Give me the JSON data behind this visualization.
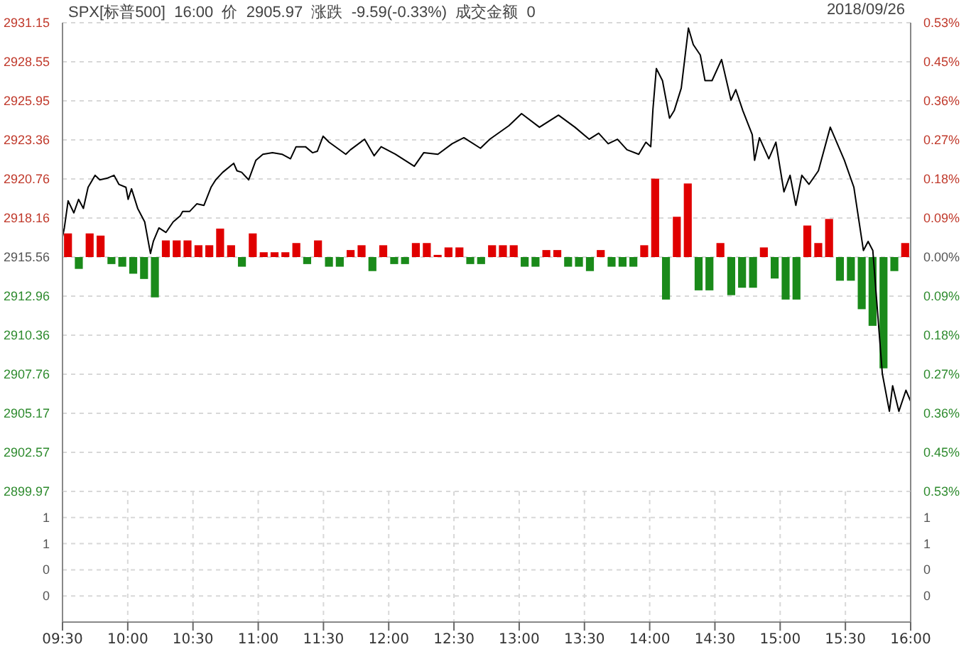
{
  "chart_data": [
    {
      "type": "line",
      "title": "SPX[标普500]  16:00  价  2905.97  涨跌  -9.59(-0.33%)  成交金额  0",
      "subtitle": "2018/09/26",
      "legend": false,
      "grid": true,
      "tick_labels": "y",
      "xlim": [
        9.5,
        16
      ],
      "xticks": [
        {
          "value": 9.5,
          "label": null
        },
        {
          "value": 10,
          "label": null
        },
        {
          "value": 10.5,
          "label": null
        },
        {
          "value": 11,
          "label": null
        },
        {
          "value": 11.5,
          "label": null
        },
        {
          "value": 12,
          "label": null
        },
        {
          "value": 12.5,
          "label": null
        },
        {
          "value": 13,
          "label": null
        },
        {
          "value": 13.5,
          "label": null
        },
        {
          "value": 14,
          "label": null
        },
        {
          "value": 14.5,
          "label": null
        },
        {
          "value": 15,
          "label": null
        },
        {
          "value": 15.5,
          "label": null
        },
        {
          "value": 16,
          "label": null
        }
      ],
      "ylim": [
        2899.97,
        2931.15
      ],
      "yticks": [
        2899.97,
        2902.57,
        2905.17,
        2907.76,
        2910.36,
        2912.96,
        2915.56,
        2918.16,
        2920.76,
        2923.36,
        2925.95,
        2928.55,
        2931.15
      ],
      "y2lim": [
        -0.535,
        0.535
      ],
      "y2ticks": [
        {
          "value": -0.535,
          "label": "0.53%"
        },
        {
          "value": -0.446,
          "label": "0.45%"
        },
        {
          "value": -0.356,
          "label": "0.36%"
        },
        {
          "value": -0.267,
          "label": "0.27%"
        },
        {
          "value": -0.178,
          "label": "0.18%"
        },
        {
          "value": -0.089,
          "label": "0.09%"
        },
        {
          "value": 0,
          "label": "0.00%"
        },
        {
          "value": 0.089,
          "label": "0.09%"
        },
        {
          "value": 0.178,
          "label": "0.18%"
        },
        {
          "value": 0.267,
          "label": "0.27%"
        },
        {
          "value": 0.356,
          "label": "0.36%"
        },
        {
          "value": 0.446,
          "label": "0.45%"
        },
        {
          "value": 0.535,
          "label": "0.53%"
        }
      ],
      "series": [
        {
          "color": "#000000",
          "x": [
            9.5,
            9.514,
            9.543,
            9.587,
            9.623,
            9.66,
            9.696,
            9.75,
            9.786,
            9.84,
            9.895,
            9.932,
            9.986,
            10.003,
            10.029,
            10.076,
            10.13,
            10.174,
            10.196,
            10.239,
            10.293,
            10.348,
            10.402,
            10.421,
            10.475,
            10.529,
            10.584,
            10.638,
            10.674,
            10.728,
            10.812,
            10.837,
            10.873,
            10.927,
            10.982,
            11.036,
            11.109,
            11.182,
            11.247,
            11.29,
            11.362,
            11.416,
            11.453,
            11.497,
            11.543,
            11.671,
            11.707,
            11.815,
            11.888,
            11.942,
            12.051,
            12.196,
            12.268,
            12.377,
            12.486,
            12.576,
            12.703,
            12.775,
            12.921,
            13.018,
            13.155,
            13.301,
            13.427,
            13.536,
            13.609,
            13.682,
            13.753,
            13.826,
            13.916,
            13.971,
            14.008,
            14.025,
            14.051,
            14.098,
            14.152,
            14.188,
            14.242,
            14.297,
            14.334,
            14.388,
            14.424,
            14.478,
            14.551,
            14.623,
            14.66,
            14.714,
            14.786,
            14.804,
            14.841,
            14.913,
            14.967,
            15.029,
            15.076,
            15.12,
            15.166,
            15.221,
            15.293,
            15.384,
            15.492,
            15.565,
            15.638,
            15.674,
            15.71,
            15.783,
            15.837,
            15.862,
            15.91,
            15.964,
            16
          ],
          "values": [
            2916.9,
            2917.5,
            2919.3,
            2918.5,
            2919.4,
            2918.8,
            2920.2,
            2921.0,
            2920.7,
            2920.8,
            2921.0,
            2920.4,
            2920.2,
            2919.4,
            2920.1,
            2918.8,
            2917.9,
            2915.8,
            2916.6,
            2917.5,
            2917.2,
            2917.9,
            2918.3,
            2918.6,
            2918.6,
            2919.1,
            2919.0,
            2920.2,
            2920.7,
            2921.2,
            2921.8,
            2921.3,
            2921.2,
            2920.7,
            2922.0,
            2922.4,
            2922.5,
            2922.4,
            2922.1,
            2922.9,
            2922.9,
            2922.5,
            2922.6,
            2923.6,
            2923.2,
            2922.4,
            2922.7,
            2923.4,
            2922.3,
            2922.9,
            2922.4,
            2921.6,
            2922.5,
            2922.4,
            2923.1,
            2923.5,
            2922.8,
            2923.4,
            2924.3,
            2925.1,
            2924.2,
            2925.0,
            2924.2,
            2923.4,
            2923.8,
            2923.1,
            2923.4,
            2922.7,
            2922.4,
            2923.2,
            2922.9,
            2925.4,
            2928.1,
            2927.3,
            2924.8,
            2925.3,
            2926.8,
            2930.8,
            2929.7,
            2929.0,
            2927.3,
            2927.3,
            2928.7,
            2926.0,
            2926.7,
            2925.3,
            2923.7,
            2922.0,
            2923.5,
            2922.1,
            2923.2,
            2919.9,
            2921.0,
            2919.0,
            2921.0,
            2920.4,
            2921.3,
            2924.2,
            2922.0,
            2920.2,
            2916.0,
            2916.6,
            2916.0,
            2907.8,
            2905.3,
            2907.0,
            2905.3,
            2906.7,
            2905.97
          ]
        },
        {
          "type": "bar",
          "axis": "y2",
          "x": [
            9.542,
            9.625,
            9.708,
            9.792,
            9.875,
            9.958,
            10.042,
            10.125,
            10.208,
            10.292,
            10.375,
            10.458,
            10.542,
            10.625,
            10.708,
            10.792,
            10.875,
            10.958,
            11.042,
            11.125,
            11.208,
            11.292,
            11.375,
            11.458,
            11.542,
            11.625,
            11.708,
            11.792,
            11.875,
            11.958,
            12.042,
            12.125,
            12.208,
            12.292,
            12.375,
            12.458,
            12.542,
            12.625,
            12.708,
            12.792,
            12.875,
            12.958,
            13.042,
            13.125,
            13.208,
            13.292,
            13.375,
            13.458,
            13.542,
            13.625,
            13.708,
            13.792,
            13.875,
            13.958,
            14.042,
            14.125,
            14.208,
            14.292,
            14.375,
            14.458,
            14.542,
            14.625,
            14.708,
            14.792,
            14.875,
            14.958,
            15.042,
            15.125,
            15.208,
            15.292,
            15.375,
            15.458,
            15.542,
            15.625,
            15.708,
            15.792,
            15.875,
            15.958
          ],
          "values": [
            0.054,
            -0.027,
            0.054,
            0.049,
            -0.016,
            -0.022,
            -0.038,
            -0.05,
            -0.092,
            0.038,
            0.038,
            0.038,
            0.027,
            0.027,
            0.065,
            0.027,
            -0.022,
            0.054,
            0.011,
            0.011,
            0.011,
            0.032,
            -0.016,
            0.038,
            -0.022,
            -0.022,
            0.016,
            0.027,
            -0.032,
            0.027,
            -0.016,
            -0.016,
            0.032,
            0.032,
            0.005,
            0.022,
            0.022,
            -0.016,
            -0.016,
            0.027,
            0.027,
            0.027,
            -0.022,
            -0.022,
            0.016,
            0.016,
            -0.022,
            -0.022,
            -0.032,
            0.016,
            -0.022,
            -0.022,
            -0.022,
            0.027,
            0.179,
            -0.097,
            0.092,
            0.168,
            -0.076,
            -0.076,
            0.032,
            -0.087,
            -0.07,
            -0.07,
            0.022,
            -0.049,
            -0.097,
            -0.097,
            0.072,
            0.032,
            0.087,
            -0.054,
            -0.054,
            -0.119,
            -0.157,
            -0.254,
            -0.032,
            0.032
          ],
          "colors": [
            "#e00000",
            "#1a8a1a",
            "#e00000",
            "#e00000",
            "#1a8a1a",
            "#1a8a1a",
            "#1a8a1a",
            "#1a8a1a",
            "#1a8a1a",
            "#e00000",
            "#e00000",
            "#e00000",
            "#e00000",
            "#e00000",
            "#e00000",
            "#e00000",
            "#1a8a1a",
            "#e00000",
            "#e00000",
            "#e00000",
            "#e00000",
            "#e00000",
            "#1a8a1a",
            "#e00000",
            "#1a8a1a",
            "#1a8a1a",
            "#e00000",
            "#e00000",
            "#1a8a1a",
            "#e00000",
            "#1a8a1a",
            "#1a8a1a",
            "#e00000",
            "#e00000",
            "#e00000",
            "#e00000",
            "#e00000",
            "#1a8a1a",
            "#1a8a1a",
            "#e00000",
            "#e00000",
            "#e00000",
            "#1a8a1a",
            "#1a8a1a",
            "#e00000",
            "#e00000",
            "#1a8a1a",
            "#1a8a1a",
            "#1a8a1a",
            "#e00000",
            "#1a8a1a",
            "#1a8a1a",
            "#1a8a1a",
            "#e00000",
            "#e00000",
            "#1a8a1a",
            "#e00000",
            "#e00000",
            "#1a8a1a",
            "#1a8a1a",
            "#e00000",
            "#1a8a1a",
            "#1a8a1a",
            "#1a8a1a",
            "#e00000",
            "#1a8a1a",
            "#1a8a1a",
            "#1a8a1a",
            "#e00000",
            "#e00000",
            "#e00000",
            "#1a8a1a",
            "#1a8a1a",
            "#1a8a1a",
            "#1a8a1a",
            "#1a8a1a",
            "#1a8a1a",
            "#e00000"
          ]
        }
      ]
    },
    {
      "type": "bar",
      "legend": false,
      "grid": true,
      "xlim": [
        9.5,
        16
      ],
      "xticks": [
        {
          "value": 9.5,
          "label": "09:30"
        },
        {
          "value": 10,
          "label": "10:00"
        },
        {
          "value": 10.5,
          "label": "10:30"
        },
        {
          "value": 11,
          "label": "11:00"
        },
        {
          "value": 11.5,
          "label": "11:30"
        },
        {
          "value": 12,
          "label": "12:00"
        },
        {
          "value": 12.5,
          "label": "12:30"
        },
        {
          "value": 13,
          "label": "13:00"
        },
        {
          "value": 13.5,
          "label": "13:30"
        },
        {
          "value": 14,
          "label": "14:00"
        },
        {
          "value": 14.5,
          "label": "14:30"
        },
        {
          "value": 15,
          "label": "15:00"
        },
        {
          "value": 15.5,
          "label": "15:30"
        },
        {
          "value": 16,
          "label": "16:00"
        }
      ],
      "ylim": [
        0,
        1
      ],
      "yticks": [
        {
          "value": 0.2,
          "label": "0"
        },
        {
          "value": 0.4,
          "label": "0"
        },
        {
          "value": 0.6,
          "label": "1"
        },
        {
          "value": 0.8,
          "label": "1"
        }
      ],
      "y2lim": [
        0,
        1
      ],
      "y2ticks": [
        {
          "value": 0.2,
          "label": "0"
        },
        {
          "value": 0.4,
          "label": "0"
        },
        {
          "value": 0.6,
          "label": "1"
        },
        {
          "value": 0.8,
          "label": "1"
        }
      ]
    }
  ]
}
